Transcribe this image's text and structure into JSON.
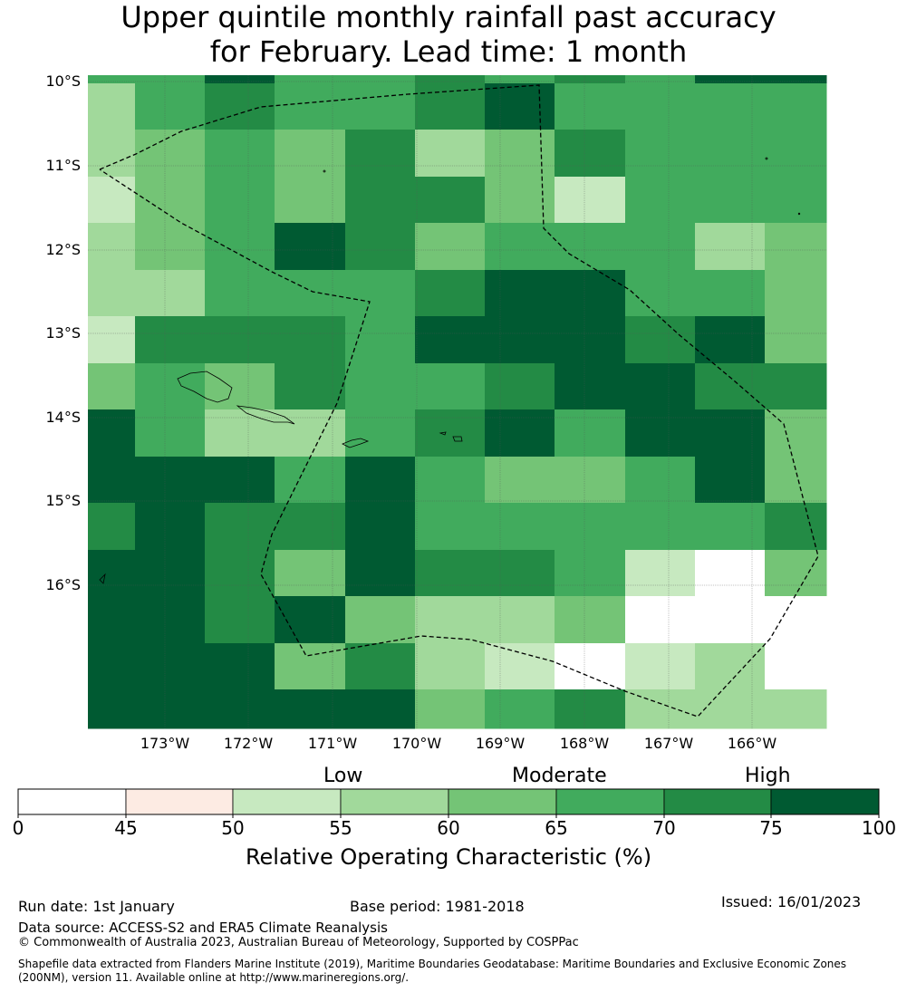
{
  "title": {
    "line1": "Upper quintile monthly rainfall past accuracy",
    "line2": "for February. Lead time: 1 month"
  },
  "map": {
    "lat_labels": [
      "10°S",
      "11°S",
      "12°S",
      "13°S",
      "14°S",
      "15°S",
      "16°S"
    ],
    "lon_labels": [
      "173°W",
      "172°W",
      "171°W",
      "170°W",
      "169°W",
      "168°W",
      "167°W",
      "166°W"
    ],
    "grid_values": [
      [
        55,
        65,
        70,
        65,
        65,
        70,
        75,
        65,
        65,
        65,
        65
      ],
      [
        55,
        60,
        65,
        60,
        70,
        55,
        60,
        70,
        65,
        65,
        65
      ],
      [
        50,
        60,
        65,
        60,
        70,
        70,
        60,
        50,
        65,
        65,
        65
      ],
      [
        55,
        60,
        65,
        80,
        70,
        60,
        65,
        65,
        65,
        55,
        60
      ],
      [
        55,
        55,
        65,
        65,
        65,
        70,
        80,
        75,
        65,
        65,
        60
      ],
      [
        50,
        70,
        70,
        70,
        65,
        75,
        80,
        75,
        70,
        80,
        60
      ],
      [
        60,
        65,
        60,
        70,
        65,
        65,
        70,
        75,
        80,
        70,
        70
      ],
      [
        80,
        65,
        55,
        55,
        65,
        70,
        75,
        65,
        75,
        75,
        60
      ],
      [
        80,
        80,
        80,
        65,
        75,
        65,
        60,
        60,
        65,
        80,
        60
      ],
      [
        70,
        75,
        70,
        70,
        75,
        65,
        65,
        65,
        65,
        65,
        70
      ],
      [
        75,
        75,
        70,
        60,
        75,
        70,
        70,
        65,
        50,
        0,
        60
      ],
      [
        80,
        80,
        70,
        75,
        60,
        55,
        55,
        60,
        0,
        0,
        0
      ],
      [
        80,
        80,
        80,
        60,
        70,
        55,
        50,
        0,
        50,
        55,
        0
      ],
      [
        80,
        80,
        80,
        75,
        80,
        60,
        65,
        70,
        55,
        55,
        55
      ]
    ]
  },
  "colorbar": {
    "categories": [
      "Low",
      "Moderate",
      "High"
    ],
    "ticks": [
      "0",
      "45",
      "50",
      "55",
      "60",
      "65",
      "70",
      "75",
      "100"
    ],
    "bin_colors": [
      "#ffffff",
      "#fdebe3",
      "#c7e9c0",
      "#a1d99b",
      "#74c476",
      "#41ab5d",
      "#238b45",
      "#005a32"
    ],
    "title": "Relative Operating Characteristic (%)"
  },
  "footer": {
    "run_date": "Run date: 1st January",
    "base_period": "Base period: 1981-2018",
    "issued": "Issued: 16/01/2023",
    "data_source": "Data source: ACCESS-S2 and ERA5 Climate Reanalysis",
    "copyright": "© Commonwealth of Australia 2023, Australian Bureau of Meteorology, Supported by COSPPac",
    "shapefile": "Shapefile data extracted from Flanders Marine Institute (2019), Maritime Boundaries Geodatabase: Maritime Boundaries and Exclusive Economic Zones (200NM), version 11. Available online at http://www.marineregions.org/."
  }
}
